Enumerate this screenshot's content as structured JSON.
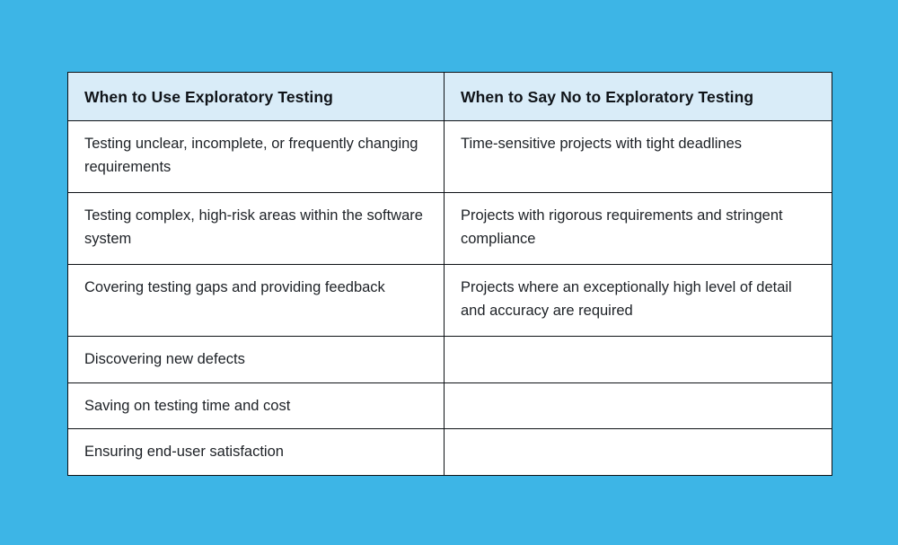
{
  "colors": {
    "page_background": "#3db5e6",
    "header_background": "#d9ecf8",
    "cell_background": "#ffffff",
    "border": "#0e1216",
    "header_text": "#101419",
    "body_text": "#1d2126"
  },
  "table": {
    "columns": [
      "When to Use Exploratory Testing",
      "When to Say No to Exploratory Testing"
    ],
    "rows": [
      {
        "use": "Testing unclear, incomplete, or frequently changing requirements",
        "say_no": "Time-sensitive projects with tight deadlines"
      },
      {
        "use": "Testing complex, high-risk areas within the software system",
        "say_no": "Projects with rigorous requirements and stringent compliance"
      },
      {
        "use": "Covering testing gaps and providing feedback",
        "say_no": "Projects where an exceptionally high level of detail and accuracy are required"
      },
      {
        "use": "Discovering new defects",
        "say_no": ""
      },
      {
        "use": "Saving on testing time and cost",
        "say_no": ""
      },
      {
        "use": "Ensuring end-user satisfaction",
        "say_no": ""
      }
    ]
  }
}
